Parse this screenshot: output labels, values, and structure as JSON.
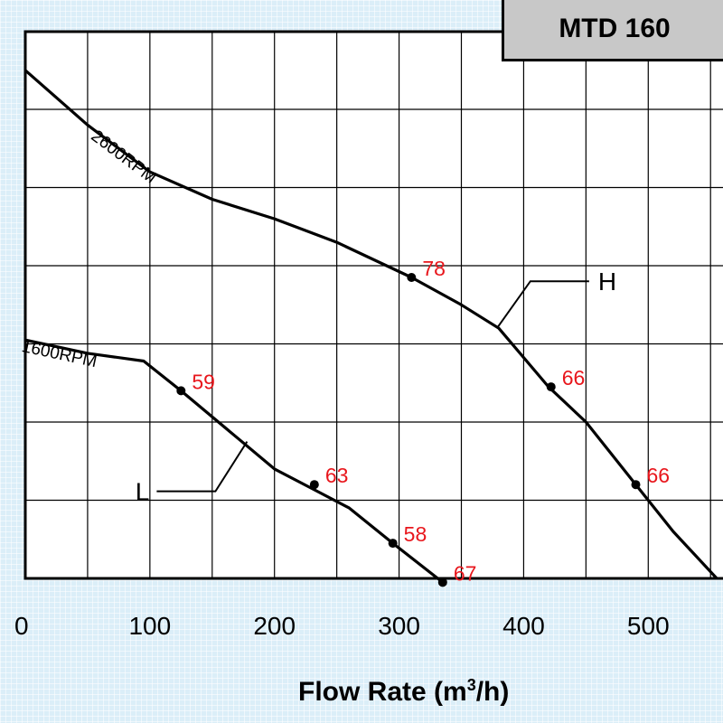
{
  "chart_data": {
    "type": "line",
    "title": "MTD 160",
    "xlabel_pre": "Flow Rate (m",
    "xlabel_sup": "3",
    "xlabel_post": "/h)",
    "x_ticks": [
      "0",
      "100",
      "200",
      "300",
      "400",
      "500"
    ],
    "xlim": [
      0,
      560
    ],
    "grid": true,
    "series": [
      {
        "name": "2600RPM",
        "points": [
          [
            0,
            6.5
          ],
          [
            50,
            5.8
          ],
          [
            100,
            5.2
          ],
          [
            150,
            4.85
          ],
          [
            200,
            4.6
          ],
          [
            250,
            4.3
          ],
          [
            310,
            3.85
          ],
          [
            350,
            3.5
          ],
          [
            380,
            3.2
          ],
          [
            420,
            2.45
          ],
          [
            450,
            2.0
          ],
          [
            490,
            1.2
          ],
          [
            520,
            0.6
          ],
          [
            555,
            0.0
          ]
        ]
      },
      {
        "name": "1600RPM",
        "points": [
          [
            0,
            3.05
          ],
          [
            50,
            2.88
          ],
          [
            95,
            2.78
          ],
          [
            125,
            2.4
          ],
          [
            170,
            1.8
          ],
          [
            200,
            1.4
          ],
          [
            230,
            1.15
          ],
          [
            260,
            0.9
          ],
          [
            295,
            0.45
          ],
          [
            335,
            -0.05
          ]
        ]
      }
    ],
    "efficiency_labels": [
      {
        "x": 310,
        "y": 3.85,
        "label": "78"
      },
      {
        "x": 422,
        "y": 2.45,
        "label": "66"
      },
      {
        "x": 490,
        "y": 1.2,
        "label": "66"
      },
      {
        "x": 125,
        "y": 2.4,
        "label": "59"
      },
      {
        "x": 232,
        "y": 1.2,
        "label": "63"
      },
      {
        "x": 295,
        "y": 0.45,
        "label": "58"
      },
      {
        "x": 335,
        "y": -0.05,
        "label": "67"
      }
    ],
    "callouts": [
      {
        "label": "H",
        "series": "2600RPM"
      },
      {
        "label": "L",
        "series": "1600RPM"
      }
    ],
    "label_color": "#e8161c",
    "line_color": "#000000"
  }
}
